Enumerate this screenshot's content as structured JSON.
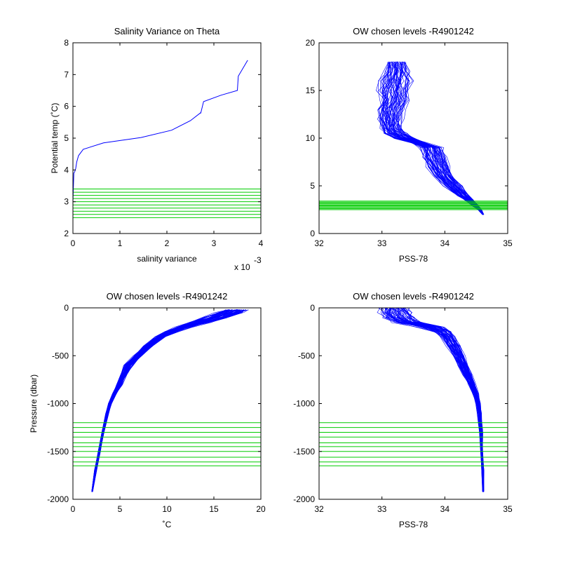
{
  "chart_data": [
    {
      "type": "line",
      "title": "Salinity Variance on Theta",
      "xlabel": "salinity variance",
      "ylabel": "Potential temp (˚C)",
      "x_multiplier_label": "x 10",
      "x_multiplier_exponent": "-3",
      "xlim": [
        0,
        4
      ],
      "ylim": [
        2,
        8
      ],
      "xticks": [
        0,
        1,
        2,
        3,
        4
      ],
      "yticks": [
        2,
        3,
        4,
        5,
        6,
        7,
        8
      ],
      "xtick_labels": [
        "0",
        "1",
        "2",
        "3",
        "4"
      ],
      "ytick_labels": [
        "2",
        "3",
        "4",
        "5",
        "6",
        "7",
        "8"
      ],
      "series": [
        {
          "color": "#0000ff",
          "x": [
            0.0,
            0.01,
            0.02,
            0.04,
            0.06,
            0.08,
            0.12,
            0.22,
            0.65,
            1.45,
            2.1,
            2.5,
            2.72,
            2.72,
            2.78,
            3.15,
            3.5,
            3.52,
            3.72
          ],
          "y": [
            3.0,
            3.5,
            3.9,
            3.95,
            4.05,
            4.25,
            4.45,
            4.65,
            4.85,
            5.02,
            5.25,
            5.55,
            5.8,
            5.78,
            6.15,
            6.35,
            6.5,
            6.95,
            7.45
          ]
        }
      ],
      "hlines": {
        "color": "#00cc00",
        "y": [
          2.5,
          2.6,
          2.7,
          2.8,
          2.9,
          3.0,
          3.1,
          3.2,
          3.3,
          3.4
        ]
      }
    },
    {
      "type": "line",
      "title": "OW chosen levels -R4901242",
      "xlabel": "PSS-78",
      "ylabel": "",
      "xlim": [
        32,
        35
      ],
      "ylim": [
        0,
        20
      ],
      "xticks": [
        32,
        33,
        34,
        35
      ],
      "yticks": [
        0,
        5,
        10,
        15,
        20
      ],
      "xtick_labels": [
        "32",
        "33",
        "34",
        "35"
      ],
      "ytick_labels": [
        "0",
        "5",
        "10",
        "15",
        "20"
      ],
      "profile_color": "#0000ff",
      "profile_count": 60,
      "profile_y": [
        2.0,
        2.5,
        3.0,
        3.5,
        4.0,
        5.0,
        6.0,
        7.0,
        8.0,
        9.0,
        9.5,
        10.0,
        10.5,
        11.0,
        12.0,
        13.0,
        14.0,
        15.0,
        16.0,
        17.0,
        18.0
      ],
      "profile_x_min": [
        34.6,
        34.53,
        34.43,
        34.33,
        34.2,
        34.0,
        33.85,
        33.73,
        33.67,
        33.62,
        33.5,
        33.2,
        33.05,
        33.0,
        32.97,
        32.95,
        33.0,
        32.98,
        33.0,
        33.05,
        33.1
      ],
      "profile_x_max": [
        34.62,
        34.58,
        34.52,
        34.45,
        34.38,
        34.26,
        34.12,
        34.05,
        34.0,
        33.95,
        33.7,
        33.5,
        33.38,
        33.3,
        33.3,
        33.33,
        33.4,
        33.4,
        33.45,
        33.42,
        33.35
      ],
      "hlines": {
        "color": "#00cc00",
        "y": [
          2.5,
          2.6,
          2.7,
          2.8,
          2.9,
          3.0,
          3.1,
          3.2,
          3.3,
          3.4
        ]
      }
    },
    {
      "type": "line",
      "title": "OW chosen levels -R4901242",
      "xlabel": "˚C",
      "ylabel": "Pressure (dbar)",
      "xlim": [
        0,
        20
      ],
      "ylim": [
        -2000,
        0
      ],
      "xticks": [
        0,
        5,
        10,
        15,
        20
      ],
      "yticks": [
        -2000,
        -1500,
        -1000,
        -500,
        0
      ],
      "xtick_labels": [
        "0",
        "5",
        "10",
        "15",
        "20"
      ],
      "ytick_labels": [
        "-2000",
        "-1500",
        "-1000",
        "-500",
        "0"
      ],
      "profile_color": "#0000ff",
      "profile_count": 60,
      "profile_y": [
        -1920,
        -1700,
        -1500,
        -1300,
        -1100,
        -1000,
        -900,
        -800,
        -700,
        -600,
        -500,
        -400,
        -300,
        -250,
        -200,
        -150,
        -100,
        -50,
        -20
      ],
      "profile_x_min": [
        2.0,
        2.3,
        2.7,
        3.1,
        3.5,
        3.8,
        4.2,
        4.7,
        5.1,
        5.5,
        6.5,
        7.6,
        8.8,
        9.8,
        11.0,
        12.5,
        14.0,
        15.5,
        16.5
      ],
      "profile_x_max": [
        2.1,
        2.5,
        2.9,
        3.3,
        3.8,
        4.1,
        4.6,
        5.2,
        5.7,
        6.3,
        7.3,
        8.5,
        9.8,
        11.0,
        12.5,
        14.5,
        16.5,
        18.0,
        18.5
      ],
      "hlines": {
        "color": "#00cc00",
        "y": [
          -1200,
          -1250,
          -1300,
          -1350,
          -1410,
          -1450,
          -1500,
          -1560,
          -1610,
          -1650
        ]
      }
    },
    {
      "type": "line",
      "title": "OW chosen levels -R4901242",
      "xlabel": "PSS-78",
      "ylabel": "",
      "xlim": [
        32,
        35
      ],
      "ylim": [
        -2000,
        0
      ],
      "xticks": [
        32,
        33,
        34,
        35
      ],
      "yticks": [
        -2000,
        -1500,
        -1000,
        -500,
        0
      ],
      "xtick_labels": [
        "32",
        "33",
        "34",
        "35"
      ],
      "ytick_labels": [
        "-2000",
        "-1500",
        "-1000",
        "-500",
        "0"
      ],
      "profile_color": "#0000ff",
      "profile_count": 60,
      "profile_y": [
        -1920,
        -1700,
        -1500,
        -1300,
        -1100,
        -1000,
        -900,
        -800,
        -700,
        -600,
        -500,
        -400,
        -300,
        -250,
        -200,
        -150,
        -100,
        -50,
        0
      ],
      "profile_x_min": [
        34.6,
        34.59,
        34.57,
        34.55,
        34.52,
        34.5,
        34.45,
        34.38,
        34.3,
        34.22,
        34.15,
        34.05,
        33.95,
        33.85,
        33.6,
        33.2,
        33.05,
        33.0,
        33.0
      ],
      "profile_x_max": [
        34.62,
        34.62,
        34.6,
        34.6,
        34.58,
        34.56,
        34.53,
        34.48,
        34.42,
        34.36,
        34.3,
        34.23,
        34.15,
        34.08,
        33.95,
        33.6,
        33.5,
        33.45,
        33.4
      ],
      "hlines": {
        "color": "#00cc00",
        "y": [
          -1200,
          -1250,
          -1300,
          -1350,
          -1410,
          -1450,
          -1500,
          -1560,
          -1610,
          -1650
        ]
      }
    }
  ]
}
